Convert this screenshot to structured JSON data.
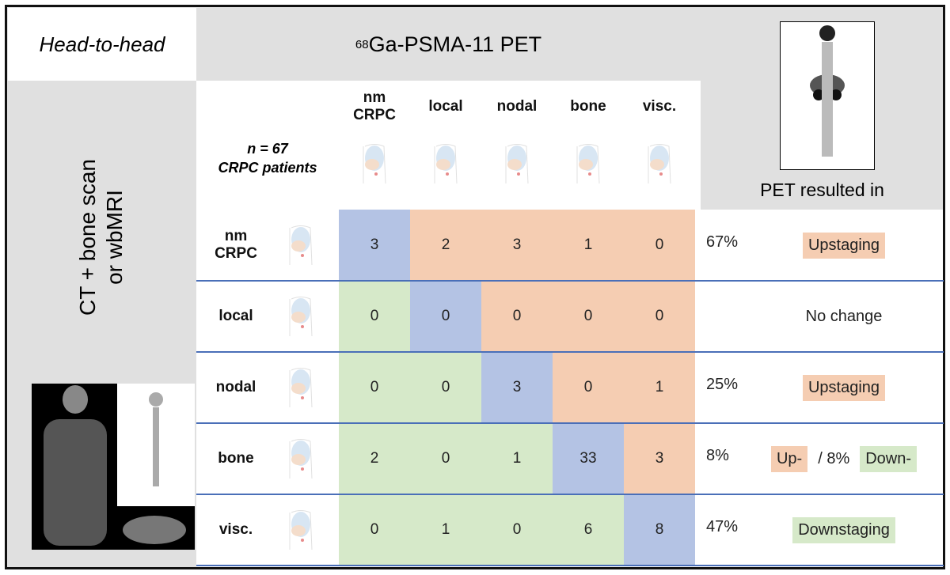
{
  "corner": "Head-to-head",
  "pet_header": {
    "isotope": "68",
    "label": "Ga-PSMA-11 PET"
  },
  "row_axis": [
    "CT + bone scan",
    "or wbMRI"
  ],
  "cohort": {
    "n": "n = 67",
    "label": "CRPC patients"
  },
  "outcome_header": "PET resulted in",
  "columns": [
    [
      "nm",
      "CRPC"
    ],
    [
      "local"
    ],
    [
      "nodal"
    ],
    [
      "bone"
    ],
    [
      "visc."
    ]
  ],
  "rows": [
    {
      "label": [
        "nm",
        "CRPC"
      ],
      "values": [
        "3",
        "2",
        "3",
        "1",
        "0"
      ],
      "percent": "67%",
      "outcome": [
        "Upstaging"
      ]
    },
    {
      "label": [
        "local"
      ],
      "values": [
        "0",
        "0",
        "0",
        "0",
        "0"
      ],
      "percent": null,
      "outcome": [
        "No change"
      ]
    },
    {
      "label": [
        "nodal"
      ],
      "values": [
        "0",
        "0",
        "3",
        "0",
        "1"
      ],
      "percent": "25%",
      "outcome": [
        "Upstaging"
      ]
    },
    {
      "label": [
        "bone"
      ],
      "values": [
        "2",
        "0",
        "1",
        "33",
        "3"
      ],
      "percent": "8%",
      "outcome": [
        "Up-",
        "/ 8%",
        "Down-"
      ]
    },
    {
      "label": [
        "visc."
      ],
      "values": [
        "0",
        "1",
        "0",
        "6",
        "8"
      ],
      "percent": "47%",
      "outcome": [
        "Downstaging"
      ]
    }
  ]
}
